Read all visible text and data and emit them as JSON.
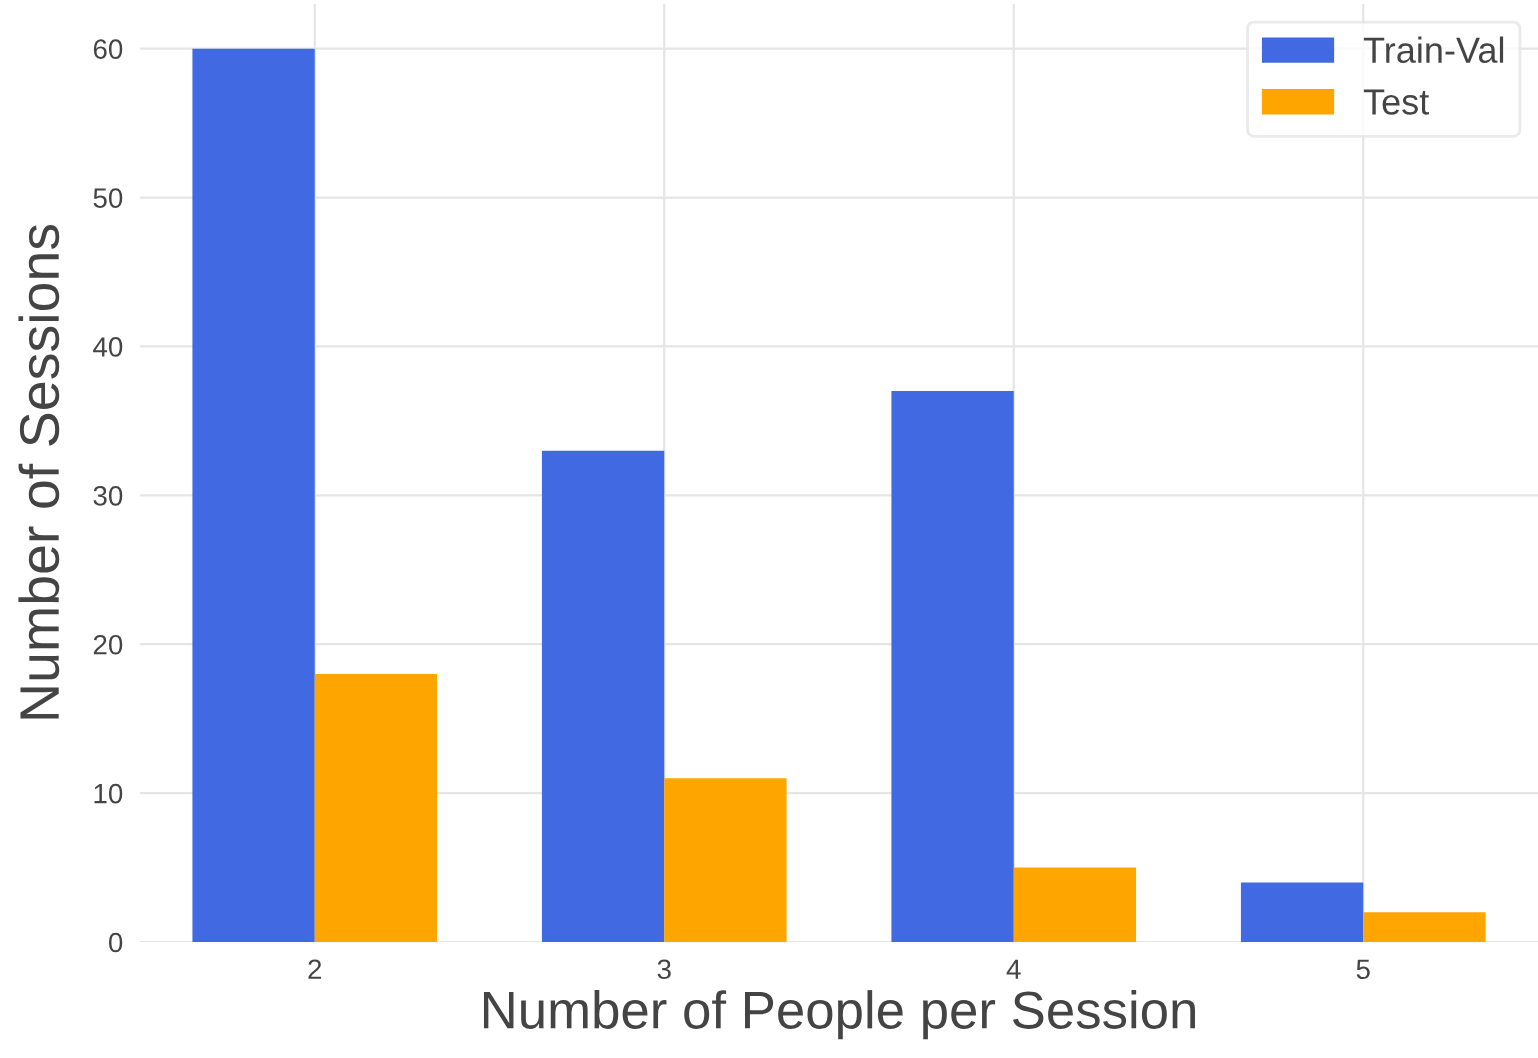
{
  "chart_data": {
    "type": "bar",
    "xlabel": "Number of People per Session",
    "ylabel": "Number of Sessions",
    "categories": [
      "2",
      "3",
      "4",
      "5"
    ],
    "series": [
      {
        "name": "Train-Val",
        "color": "#4169e1",
        "values": [
          60,
          33,
          37,
          4
        ]
      },
      {
        "name": "Test",
        "color": "#ffa500",
        "values": [
          18,
          11,
          5,
          2
        ]
      }
    ],
    "ylim": [
      0,
      63
    ],
    "yticks": [
      0,
      10,
      20,
      30,
      40,
      50,
      60
    ],
    "grid": true,
    "legend": "top right"
  }
}
